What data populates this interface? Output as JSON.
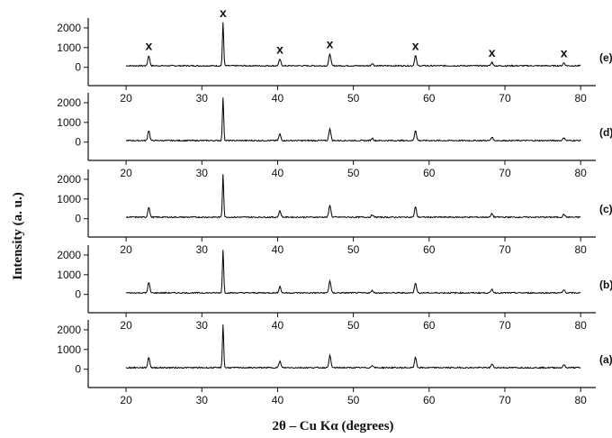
{
  "chart_data": {
    "type": "line",
    "xlabel": "2θ – Cu Kα  (degrees)",
    "ylabel": "Intensity (a. u.)",
    "xlim": [
      15,
      82
    ],
    "ylim": [
      -150,
      2500
    ],
    "x_ticks": [
      20,
      30,
      40,
      50,
      60,
      70,
      80
    ],
    "y_ticks": [
      0,
      1000,
      2000
    ],
    "x_tick_labels": [
      "20",
      "30",
      "40",
      "50",
      "60",
      "70",
      "80"
    ],
    "y_tick_labels": [
      "0",
      "1000",
      "2000"
    ],
    "line_color": "#000000",
    "baseline": 80,
    "peaks": [
      {
        "x": 23.0,
        "y": 520
      },
      {
        "x": 32.8,
        "y": 2200
      },
      {
        "x": 40.3,
        "y": 330
      },
      {
        "x": 46.9,
        "y": 620
      },
      {
        "x": 52.5,
        "y": 120
      },
      {
        "x": 58.2,
        "y": 520
      },
      {
        "x": 68.3,
        "y": 180
      },
      {
        "x": 77.8,
        "y": 150
      }
    ],
    "marker_symbol": "x",
    "marker_positions_deg": [
      23.0,
      32.8,
      40.3,
      46.9,
      58.2,
      68.3,
      77.8
    ],
    "panels": [
      {
        "label": "(e)",
        "has_markers": true
      },
      {
        "label": "(d)",
        "has_markers": false
      },
      {
        "label": "(c)",
        "has_markers": false
      },
      {
        "label": "(b)",
        "has_markers": false
      },
      {
        "label": "(a)",
        "has_markers": false
      }
    ]
  }
}
